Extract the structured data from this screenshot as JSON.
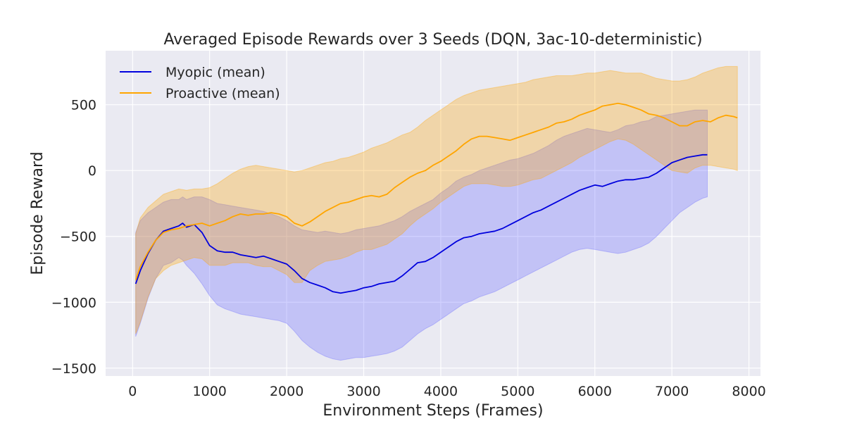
{
  "chart_data": {
    "type": "line",
    "title": "Averaged Episode Rewards over 3 Seeds (DQN, 3ac-10-deterministic)",
    "xlabel": "Environment Steps (Frames)",
    "ylabel": "Episode Reward",
    "xlim": [
      -350,
      8150
    ],
    "ylim": [
      -1560,
      910
    ],
    "xticks": [
      0,
      1000,
      2000,
      3000,
      4000,
      5000,
      6000,
      7000,
      8000
    ],
    "xtick_labels": [
      "0",
      "1000",
      "2000",
      "3000",
      "4000",
      "5000",
      "6000",
      "7000",
      "8000"
    ],
    "yticks": [
      -1500,
      -1000,
      -500,
      0,
      500
    ],
    "ytick_labels": [
      "−1500",
      "−1000",
      "−500",
      "0",
      "500"
    ],
    "grid": true,
    "legend_position": "top-left",
    "background": "#eaeaf2",
    "series": [
      {
        "name": "Myopic (mean)",
        "color": "#0000dd",
        "band_color": "#6666ff",
        "x": [
          40,
          100,
          200,
          300,
          400,
          500,
          600,
          650,
          700,
          800,
          900,
          1000,
          1100,
          1200,
          1300,
          1400,
          1500,
          1600,
          1700,
          1800,
          1900,
          2000,
          2100,
          2200,
          2300,
          2400,
          2500,
          2600,
          2700,
          2800,
          2900,
          3000,
          3100,
          3200,
          3300,
          3400,
          3500,
          3600,
          3700,
          3800,
          3900,
          4000,
          4100,
          4200,
          4300,
          4400,
          4500,
          4600,
          4700,
          4800,
          4900,
          5000,
          5100,
          5200,
          5300,
          5400,
          5500,
          5600,
          5700,
          5800,
          5900,
          6000,
          6100,
          6200,
          6300,
          6400,
          6500,
          6600,
          6700,
          6800,
          6900,
          7000,
          7100,
          7200,
          7300,
          7400,
          7460
        ],
        "mean": [
          -860,
          -760,
          -630,
          -530,
          -460,
          -440,
          -420,
          -400,
          -430,
          -410,
          -470,
          -570,
          -610,
          -620,
          -620,
          -640,
          -650,
          -660,
          -650,
          -670,
          -690,
          -710,
          -760,
          -820,
          -850,
          -870,
          -890,
          -920,
          -930,
          -920,
          -910,
          -890,
          -880,
          -860,
          -850,
          -840,
          -800,
          -750,
          -700,
          -690,
          -660,
          -620,
          -580,
          -540,
          -510,
          -500,
          -480,
          -470,
          -460,
          -440,
          -410,
          -380,
          -350,
          -320,
          -300,
          -270,
          -240,
          -210,
          -180,
          -150,
          -130,
          -110,
          -120,
          -100,
          -80,
          -70,
          -70,
          -60,
          -50,
          -20,
          20,
          60,
          80,
          100,
          110,
          120,
          120
        ],
        "upper": [
          -470,
          -380,
          -320,
          -280,
          -240,
          -220,
          -220,
          -200,
          -220,
          -200,
          -200,
          -220,
          -250,
          -260,
          -270,
          -280,
          -290,
          -300,
          -310,
          -330,
          -350,
          -380,
          -420,
          -450,
          -460,
          -470,
          -460,
          -470,
          -480,
          -470,
          -450,
          -440,
          -430,
          -420,
          -400,
          -380,
          -350,
          -310,
          -280,
          -250,
          -220,
          -170,
          -130,
          -80,
          -50,
          -30,
          0,
          20,
          40,
          60,
          80,
          90,
          110,
          130,
          160,
          190,
          230,
          260,
          280,
          300,
          320,
          310,
          300,
          290,
          310,
          340,
          350,
          370,
          380,
          410,
          420,
          430,
          440,
          450,
          460,
          460,
          460
        ],
        "lower": [
          -1260,
          -1160,
          -970,
          -820,
          -720,
          -700,
          -660,
          -680,
          -720,
          -780,
          -860,
          -950,
          -1020,
          -1050,
          -1070,
          -1090,
          -1100,
          -1110,
          -1120,
          -1130,
          -1140,
          -1160,
          -1220,
          -1290,
          -1340,
          -1380,
          -1410,
          -1430,
          -1440,
          -1430,
          -1420,
          -1420,
          -1410,
          -1400,
          -1390,
          -1370,
          -1340,
          -1290,
          -1240,
          -1200,
          -1170,
          -1130,
          -1090,
          -1050,
          -1010,
          -990,
          -960,
          -940,
          -920,
          -890,
          -860,
          -830,
          -800,
          -770,
          -740,
          -710,
          -680,
          -650,
          -620,
          -600,
          -590,
          -600,
          -610,
          -620,
          -630,
          -620,
          -600,
          -580,
          -550,
          -500,
          -440,
          -380,
          -320,
          -280,
          -240,
          -210,
          -200
        ]
      },
      {
        "name": "Proactive (mean)",
        "color": "#ffa500",
        "band_color": "#ffa500",
        "x": [
          40,
          100,
          200,
          300,
          400,
          500,
          600,
          700,
          800,
          900,
          1000,
          1100,
          1200,
          1300,
          1400,
          1500,
          1600,
          1700,
          1800,
          1900,
          2000,
          2100,
          2200,
          2300,
          2400,
          2500,
          2600,
          2700,
          2800,
          2900,
          3000,
          3100,
          3200,
          3300,
          3400,
          3500,
          3600,
          3700,
          3800,
          3900,
          4000,
          4100,
          4200,
          4300,
          4400,
          4500,
          4600,
          4700,
          4800,
          4900,
          5000,
          5100,
          5200,
          5300,
          5400,
          5500,
          5600,
          5700,
          5800,
          5900,
          6000,
          6100,
          6200,
          6300,
          6400,
          6500,
          6600,
          6700,
          6800,
          6900,
          7000,
          7100,
          7200,
          7300,
          7400,
          7500,
          7600,
          7700,
          7800,
          7850
        ],
        "mean": [
          -830,
          -730,
          -620,
          -530,
          -470,
          -450,
          -440,
          -420,
          -410,
          -400,
          -420,
          -400,
          -380,
          -350,
          -330,
          -340,
          -330,
          -330,
          -320,
          -330,
          -350,
          -400,
          -420,
          -390,
          -350,
          -310,
          -280,
          -250,
          -240,
          -220,
          -200,
          -190,
          -200,
          -180,
          -130,
          -90,
          -50,
          -20,
          0,
          40,
          70,
          110,
          150,
          200,
          240,
          260,
          260,
          250,
          240,
          230,
          250,
          270,
          290,
          310,
          330,
          360,
          370,
          390,
          420,
          440,
          460,
          490,
          500,
          510,
          500,
          480,
          460,
          430,
          420,
          400,
          370,
          340,
          340,
          370,
          380,
          370,
          400,
          420,
          410,
          400
        ],
        "upper": [
          -480,
          -360,
          -280,
          -230,
          -180,
          -160,
          -140,
          -150,
          -140,
          -140,
          -130,
          -100,
          -60,
          -20,
          10,
          30,
          40,
          30,
          20,
          10,
          0,
          -10,
          0,
          20,
          40,
          60,
          70,
          90,
          100,
          120,
          140,
          170,
          190,
          210,
          240,
          270,
          290,
          330,
          380,
          420,
          460,
          500,
          540,
          570,
          590,
          610,
          620,
          630,
          640,
          650,
          660,
          670,
          690,
          700,
          710,
          720,
          720,
          720,
          730,
          740,
          740,
          750,
          760,
          750,
          740,
          740,
          740,
          720,
          700,
          690,
          680,
          680,
          690,
          710,
          740,
          760,
          780,
          790,
          790,
          790
        ],
        "lower": [
          -1240,
          -1150,
          -960,
          -820,
          -760,
          -720,
          -700,
          -680,
          -660,
          -670,
          -720,
          -720,
          -720,
          -700,
          -700,
          -700,
          -720,
          -730,
          -730,
          -760,
          -790,
          -850,
          -850,
          -760,
          -720,
          -690,
          -680,
          -670,
          -650,
          -620,
          -600,
          -600,
          -580,
          -560,
          -520,
          -480,
          -420,
          -370,
          -330,
          -290,
          -240,
          -200,
          -160,
          -120,
          -100,
          -100,
          -100,
          -110,
          -120,
          -120,
          -110,
          -90,
          -70,
          -60,
          -30,
          0,
          30,
          60,
          100,
          130,
          160,
          190,
          220,
          240,
          230,
          200,
          160,
          120,
          80,
          40,
          0,
          -10,
          -20,
          20,
          40,
          40,
          30,
          20,
          10,
          0
        ]
      }
    ]
  }
}
